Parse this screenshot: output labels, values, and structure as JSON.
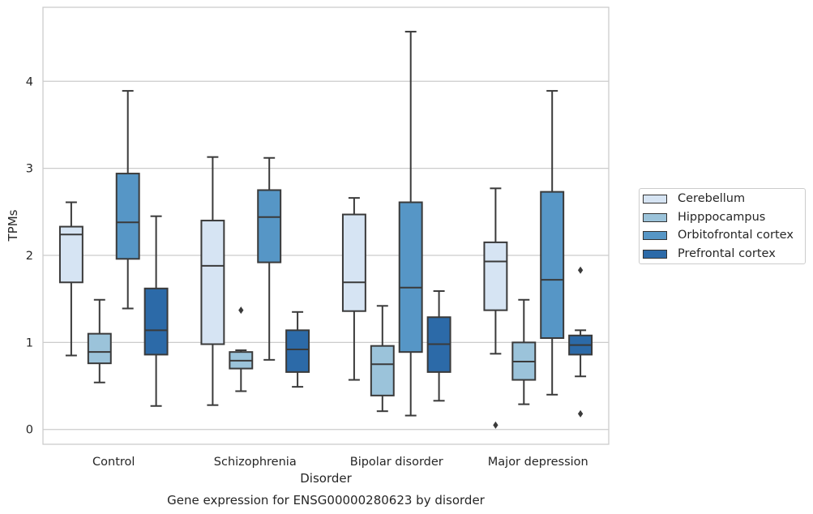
{
  "chart_data": {
    "type": "box",
    "xlabel": "Disorder",
    "ylabel": "TPMs",
    "caption": "Gene expression for ENSG00000280623 by disorder",
    "ylim": [
      -0.17,
      4.85
    ],
    "yticks": [
      0,
      1,
      2,
      3,
      4
    ],
    "grid": true,
    "legend_position": "right",
    "categories": [
      "Control",
      "Schizophrenia",
      "Bipolar disorder",
      "Major depression"
    ],
    "series": [
      {
        "name": "Cerebellum",
        "color": "#d6e4f3",
        "boxes": [
          {
            "wlo": 0.85,
            "q1": 1.69,
            "med": 2.24,
            "q3": 2.33,
            "whi": 2.61,
            "fliers": []
          },
          {
            "wlo": 0.28,
            "q1": 0.98,
            "med": 1.88,
            "q3": 2.4,
            "whi": 3.13,
            "fliers": []
          },
          {
            "wlo": 0.57,
            "q1": 1.36,
            "med": 1.69,
            "q3": 2.47,
            "whi": 2.66,
            "fliers": []
          },
          {
            "wlo": 0.87,
            "q1": 1.37,
            "med": 1.93,
            "q3": 2.15,
            "whi": 2.77,
            "fliers": [
              0.05
            ]
          }
        ]
      },
      {
        "name": "Hipppocampus",
        "color": "#9bc3da",
        "boxes": [
          {
            "wlo": 0.54,
            "q1": 0.76,
            "med": 0.89,
            "q3": 1.1,
            "whi": 1.49,
            "fliers": []
          },
          {
            "wlo": 0.44,
            "q1": 0.7,
            "med": 0.79,
            "q3": 0.89,
            "whi": 0.91,
            "fliers": [
              1.37
            ]
          },
          {
            "wlo": 0.21,
            "q1": 0.39,
            "med": 0.75,
            "q3": 0.96,
            "whi": 1.42,
            "fliers": []
          },
          {
            "wlo": 0.29,
            "q1": 0.57,
            "med": 0.78,
            "q3": 1.0,
            "whi": 1.49,
            "fliers": []
          }
        ]
      },
      {
        "name": "Orbitofrontal cortex",
        "color": "#5696c6",
        "boxes": [
          {
            "wlo": 1.39,
            "q1": 1.96,
            "med": 2.38,
            "q3": 2.94,
            "whi": 3.89,
            "fliers": []
          },
          {
            "wlo": 0.8,
            "q1": 1.92,
            "med": 2.44,
            "q3": 2.75,
            "whi": 3.12,
            "fliers": []
          },
          {
            "wlo": 0.16,
            "q1": 0.89,
            "med": 1.63,
            "q3": 2.61,
            "whi": 4.57,
            "fliers": []
          },
          {
            "wlo": 0.4,
            "q1": 1.05,
            "med": 1.72,
            "q3": 2.73,
            "whi": 3.89,
            "fliers": []
          }
        ]
      },
      {
        "name": "Prefrontal cortex",
        "color": "#2c6aa8",
        "boxes": [
          {
            "wlo": 0.27,
            "q1": 0.86,
            "med": 1.14,
            "q3": 1.62,
            "whi": 2.45,
            "fliers": []
          },
          {
            "wlo": 0.49,
            "q1": 0.66,
            "med": 0.92,
            "q3": 1.14,
            "whi": 1.35,
            "fliers": []
          },
          {
            "wlo": 0.33,
            "q1": 0.66,
            "med": 0.98,
            "q3": 1.29,
            "whi": 1.59,
            "fliers": []
          },
          {
            "wlo": 0.61,
            "q1": 0.86,
            "med": 0.97,
            "q3": 1.08,
            "whi": 1.14,
            "fliers": [
              1.83,
              0.18
            ]
          }
        ]
      }
    ]
  }
}
